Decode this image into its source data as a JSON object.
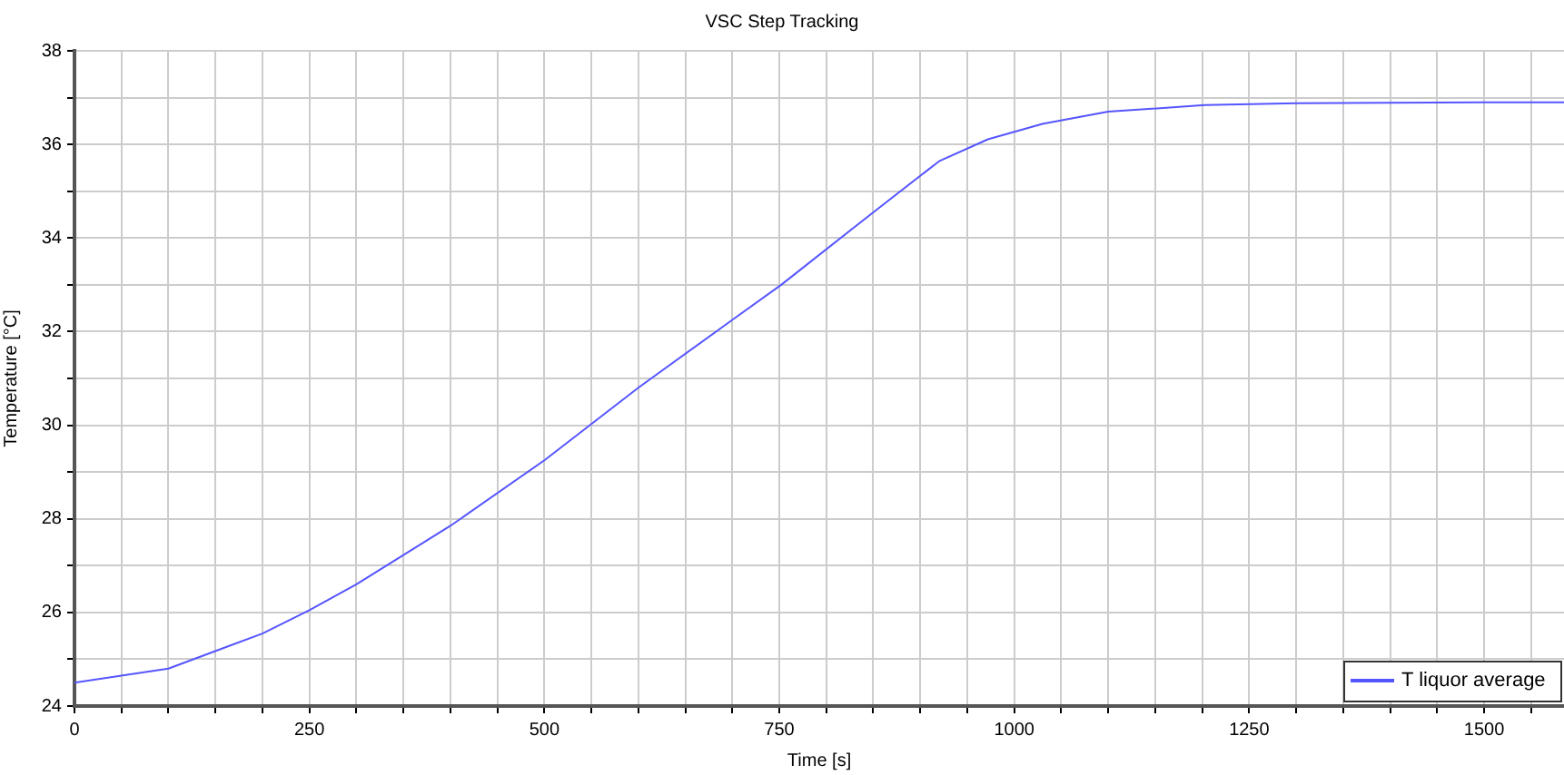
{
  "chart_data": {
    "type": "line",
    "title": "VSC Step Tracking",
    "xlabel": "Time [s]",
    "ylabel": "Temperature [°C]",
    "x": [
      0,
      100,
      200,
      250,
      300,
      400,
      500,
      600,
      700,
      752,
      850,
      920,
      972,
      1030,
      1100,
      1203,
      1300,
      1397,
      1500,
      1585
    ],
    "series": [
      {
        "name": "T liquor average",
        "color": "#5555ff",
        "values": [
          24.5,
          24.8,
          25.55,
          26.05,
          26.6,
          27.85,
          29.25,
          30.8,
          32.25,
          33.0,
          34.55,
          35.64,
          36.11,
          36.44,
          36.7,
          36.84,
          36.88,
          36.89,
          36.9,
          36.9
        ]
      }
    ],
    "xlim": [
      0,
      1585
    ],
    "xticks": [
      0,
      {
        "value": 50,
        "label": null
      },
      {
        "value": 100,
        "label": null
      },
      {
        "value": 150,
        "label": null
      },
      {
        "value": 200,
        "label": null
      },
      250,
      {
        "value": 300,
        "label": null
      },
      {
        "value": 350,
        "label": null
      },
      {
        "value": 400,
        "label": null
      },
      {
        "value": 450,
        "label": null
      },
      500,
      {
        "value": 550,
        "label": null
      },
      {
        "value": 600,
        "label": null
      },
      {
        "value": 650,
        "label": null
      },
      {
        "value": 700,
        "label": null
      },
      750,
      {
        "value": 800,
        "label": null
      },
      {
        "value": 850,
        "label": null
      },
      {
        "value": 900,
        "label": null
      },
      {
        "value": 950,
        "label": null
      },
      1000,
      {
        "value": 1050,
        "label": null
      },
      {
        "value": 1100,
        "label": null
      },
      {
        "value": 1150,
        "label": null
      },
      {
        "value": 1200,
        "label": null
      },
      1250,
      {
        "value": 1300,
        "label": null
      },
      {
        "value": 1350,
        "label": null
      },
      {
        "value": 1400,
        "label": null
      },
      {
        "value": 1450,
        "label": null
      },
      1500,
      {
        "value": 1550,
        "label": null
      }
    ],
    "ylim": [
      24,
      38
    ],
    "yticks": [
      24,
      {
        "value": 25,
        "label": null
      },
      26,
      {
        "value": 27,
        "label": null
      },
      28,
      {
        "value": 29,
        "label": null
      },
      30,
      {
        "value": 31,
        "label": null
      },
      32,
      {
        "value": 33,
        "label": null
      },
      34,
      {
        "value": 35,
        "label": null
      },
      36,
      {
        "value": 37,
        "label": null
      },
      38
    ],
    "grid": true,
    "legend": "bottom right",
    "marker": "none",
    "line_style": "solid"
  }
}
